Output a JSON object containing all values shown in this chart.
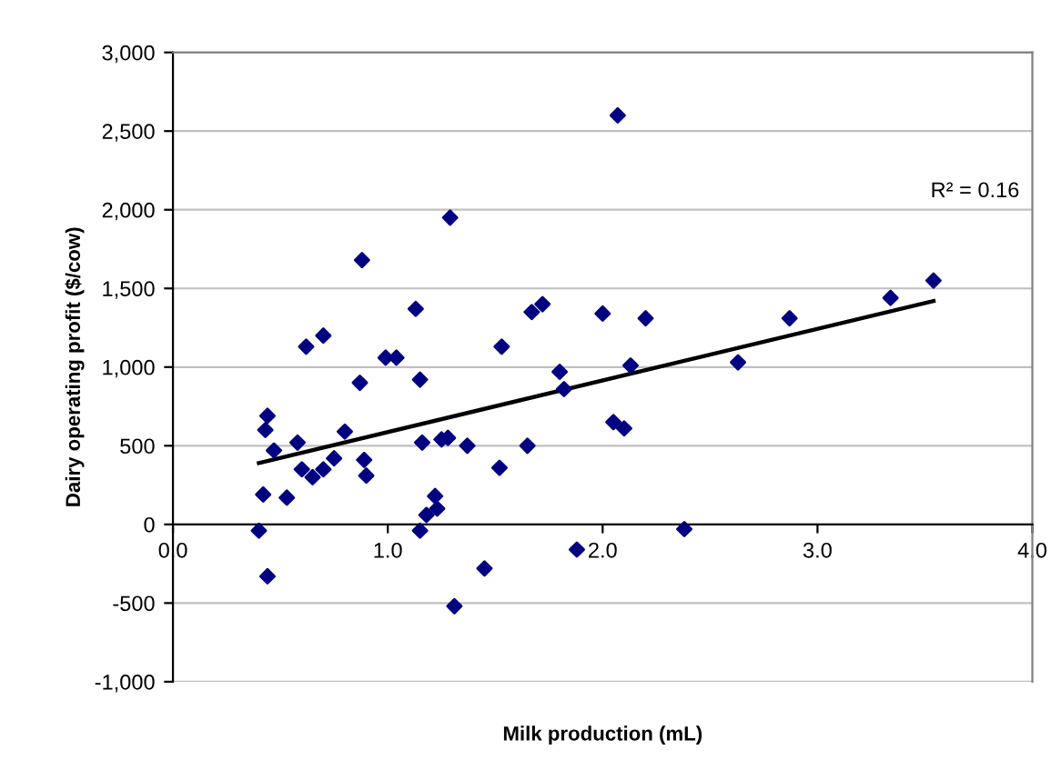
{
  "chart_data": {
    "type": "scatter",
    "xlabel": "Milk production (mL)",
    "ylabel": "Dairy operating profit ($/cow)",
    "xlim": [
      0,
      4
    ],
    "xticks": [
      {
        "value": 0,
        "label": "0.0"
      },
      {
        "value": 1,
        "label": "1.0"
      },
      {
        "value": 2,
        "label": "2.0"
      },
      {
        "value": 3,
        "label": "3.0"
      },
      {
        "value": 4,
        "label": "4.0"
      }
    ],
    "ylim": [
      -1000,
      3000
    ],
    "yticks": [
      {
        "value": -1000,
        "label": "-1,000"
      },
      {
        "value": -500,
        "label": "-500"
      },
      {
        "value": 0,
        "label": "0"
      },
      {
        "value": 500,
        "label": "500"
      },
      {
        "value": 1000,
        "label": "1,000"
      },
      {
        "value": 1500,
        "label": "1,500"
      },
      {
        "value": 2000,
        "label": "2,000"
      },
      {
        "value": 2500,
        "label": "2,500"
      },
      {
        "value": 3000,
        "label": "3,000"
      }
    ],
    "grid": "y",
    "annotations": [
      "R² = 0.16"
    ],
    "series": [
      {
        "marker": "diamond",
        "color": "#000080",
        "x": [
          0.4,
          0.42,
          0.43,
          0.44,
          0.44,
          0.47,
          0.53,
          0.58,
          0.6,
          0.62,
          0.65,
          0.7,
          0.7,
          0.75,
          0.8,
          0.87,
          0.88,
          0.89,
          0.9,
          0.99,
          1.04,
          1.13,
          1.15,
          1.16,
          1.15,
          1.18,
          1.22,
          1.23,
          1.25,
          1.28,
          1.29,
          1.31,
          1.37,
          1.45,
          1.52,
          1.53,
          1.65,
          1.67,
          1.72,
          1.8,
          1.82,
          1.88,
          2.0,
          2.05,
          2.07,
          2.1,
          2.13,
          2.2,
          2.38,
          2.63,
          2.87,
          3.34,
          3.54
        ],
        "values": [
          -40,
          190,
          600,
          690,
          -330,
          470,
          170,
          520,
          350,
          1130,
          300,
          1200,
          350,
          420,
          590,
          900,
          1680,
          410,
          310,
          1060,
          1060,
          1370,
          920,
          520,
          -40,
          60,
          180,
          100,
          540,
          550,
          1950,
          -520,
          500,
          -280,
          360,
          1130,
          500,
          1350,
          1400,
          970,
          860,
          -160,
          1340,
          650,
          2600,
          610,
          1010,
          1310,
          -30,
          1030,
          1310,
          1440,
          1550
        ]
      },
      {
        "type": "line",
        "marker": "none",
        "color": "#000000",
        "x": [
          0.4,
          3.54
        ],
        "values": [
          390,
          1420
        ]
      }
    ]
  }
}
